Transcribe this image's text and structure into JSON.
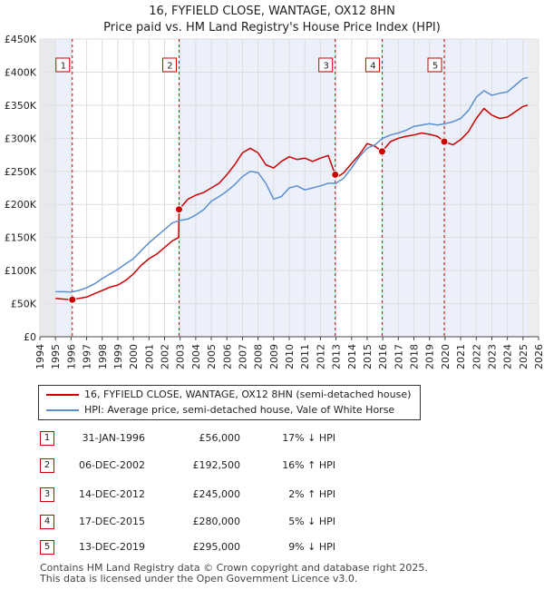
{
  "chart_data": {
    "type": "line",
    "title": "16, FYFIELD CLOSE, WANTAGE, OX12 8HN",
    "subtitle": "Price paid vs. HM Land Registry's House Price Index (HPI)",
    "xlim": [
      1994,
      2026
    ],
    "ylim": [
      0,
      450000
    ],
    "x_ticks": [
      "1994",
      "1995",
      "1996",
      "1997",
      "1998",
      "1999",
      "2000",
      "2001",
      "2002",
      "2003",
      "2004",
      "2005",
      "2006",
      "2007",
      "2008",
      "2009",
      "2010",
      "2011",
      "2012",
      "2013",
      "2014",
      "2015",
      "2016",
      "2017",
      "2018",
      "2019",
      "2020",
      "2021",
      "2022",
      "2023",
      "2024",
      "2025",
      "2026"
    ],
    "y_ticks": [
      {
        "value": 0,
        "label": "£0"
      },
      {
        "value": 50000,
        "label": "£50K"
      },
      {
        "value": 100000,
        "label": "£100K"
      },
      {
        "value": 150000,
        "label": "£150K"
      },
      {
        "value": 200000,
        "label": "£200K"
      },
      {
        "value": 250000,
        "label": "£250K"
      },
      {
        "value": 300000,
        "label": "£300K"
      },
      {
        "value": 350000,
        "label": "£350K"
      },
      {
        "value": 400000,
        "label": "£400K"
      },
      {
        "value": 450000,
        "label": "£450K"
      }
    ],
    "grid": true,
    "series": [
      {
        "name": "16, FYFIELD CLOSE, WANTAGE, OX12 8HN (semi-detached house)",
        "color": "#cc0000",
        "x": [
          1995.0,
          1995.5,
          1996.08,
          1996.5,
          1997.0,
          1997.5,
          1998.0,
          1998.5,
          1999.0,
          1999.5,
          2000.0,
          2000.5,
          2001.0,
          2001.5,
          2002.0,
          2002.5,
          2002.9,
          2002.93,
          2003.5,
          2004.0,
          2004.5,
          2005.0,
          2005.5,
          2006.0,
          2006.5,
          2007.0,
          2007.5,
          2008.0,
          2008.5,
          2009.0,
          2009.5,
          2010.0,
          2010.5,
          2011.0,
          2011.5,
          2012.0,
          2012.5,
          2012.95,
          2013.0,
          2013.5,
          2014.0,
          2014.5,
          2015.0,
          2015.5,
          2015.96,
          2016.5,
          2017.0,
          2017.5,
          2018.0,
          2018.5,
          2019.0,
          2019.5,
          2019.95,
          2020.5,
          2021.0,
          2021.5,
          2022.0,
          2022.5,
          2023.0,
          2023.5,
          2024.0,
          2024.5,
          2025.0,
          2025.3
        ],
        "y": [
          58000,
          57000,
          56000,
          58000,
          60000,
          65000,
          70000,
          75000,
          78000,
          85000,
          95000,
          108000,
          118000,
          125000,
          135000,
          145000,
          150000,
          192500,
          208000,
          214000,
          218000,
          225000,
          232000,
          245000,
          260000,
          278000,
          285000,
          278000,
          260000,
          255000,
          265000,
          272000,
          268000,
          270000,
          265000,
          270000,
          274000,
          245000,
          240000,
          248000,
          262000,
          275000,
          292000,
          288000,
          280000,
          295000,
          300000,
          303000,
          305000,
          308000,
          306000,
          303000,
          295000,
          290000,
          298000,
          310000,
          330000,
          345000,
          335000,
          330000,
          332000,
          340000,
          348000,
          350000
        ]
      },
      {
        "name": "HPI: Average price, semi-detached house, Vale of White Horse",
        "color": "#5b8fd0",
        "x": [
          1995.0,
          1995.5,
          1996.0,
          1996.5,
          1997.0,
          1997.5,
          1998.0,
          1998.5,
          1999.0,
          1999.5,
          2000.0,
          2000.5,
          2001.0,
          2001.5,
          2002.0,
          2002.5,
          2003.0,
          2003.5,
          2004.0,
          2004.5,
          2005.0,
          2005.5,
          2006.0,
          2006.5,
          2007.0,
          2007.5,
          2008.0,
          2008.5,
          2009.0,
          2009.5,
          2010.0,
          2010.5,
          2011.0,
          2011.5,
          2012.0,
          2012.5,
          2013.0,
          2013.5,
          2014.0,
          2014.5,
          2015.0,
          2015.5,
          2016.0,
          2016.5,
          2017.0,
          2017.5,
          2018.0,
          2018.5,
          2019.0,
          2019.5,
          2020.0,
          2020.5,
          2021.0,
          2021.5,
          2022.0,
          2022.5,
          2023.0,
          2023.5,
          2024.0,
          2024.5,
          2025.0,
          2025.3
        ],
        "y": [
          68000,
          68000,
          67500,
          70000,
          74000,
          80000,
          88000,
          95000,
          102000,
          110000,
          118000,
          130000,
          142000,
          152000,
          162000,
          172000,
          176000,
          178000,
          184000,
          192000,
          205000,
          212000,
          220000,
          230000,
          242000,
          250000,
          248000,
          232000,
          208000,
          212000,
          225000,
          228000,
          222000,
          225000,
          228000,
          232000,
          232000,
          240000,
          255000,
          272000,
          285000,
          290000,
          300000,
          305000,
          308000,
          312000,
          318000,
          320000,
          322000,
          320000,
          322000,
          325000,
          330000,
          342000,
          362000,
          372000,
          365000,
          368000,
          370000,
          380000,
          390000,
          392000
        ]
      }
    ],
    "sales": [
      {
        "n": "1",
        "year": 1996.08,
        "price": 56000
      },
      {
        "n": "2",
        "year": 2002.93,
        "price": 192500
      },
      {
        "n": "3",
        "year": 2012.95,
        "price": 245000
      },
      {
        "n": "4",
        "year": 2015.96,
        "price": 280000
      },
      {
        "n": "5",
        "year": 2019.95,
        "price": 295000
      }
    ],
    "shaded_spans": [
      [
        1994,
        1995
      ],
      [
        2025.3,
        2026
      ]
    ]
  },
  "colors": {
    "price_line": "#cc0000",
    "hpi_line": "#5b8fd0",
    "band_fill": "#dde6f7",
    "grid": "#dddddd",
    "axis_text": "#222222"
  },
  "legend": {
    "price_label": "16, FYFIELD CLOSE, WANTAGE, OX12 8HN (semi-detached house)",
    "hpi_label": "HPI: Average price, semi-detached house, Vale of White Horse"
  },
  "transactions": [
    {
      "n": "1",
      "date": "31-JAN-1996",
      "price": "£56,000",
      "hpi": "17% ↓ HPI"
    },
    {
      "n": "2",
      "date": "06-DEC-2002",
      "price": "£192,500",
      "hpi": "16% ↑ HPI"
    },
    {
      "n": "3",
      "date": "14-DEC-2012",
      "price": "£245,000",
      "hpi": "2% ↑ HPI"
    },
    {
      "n": "4",
      "date": "17-DEC-2015",
      "price": "£280,000",
      "hpi": "5% ↓ HPI"
    },
    {
      "n": "5",
      "date": "13-DEC-2019",
      "price": "£295,000",
      "hpi": "9% ↓ HPI"
    }
  ],
  "footer": {
    "line1": "Contains HM Land Registry data © Crown copyright and database right 2025.",
    "line2": "This data is licensed under the Open Government Licence v3.0."
  }
}
